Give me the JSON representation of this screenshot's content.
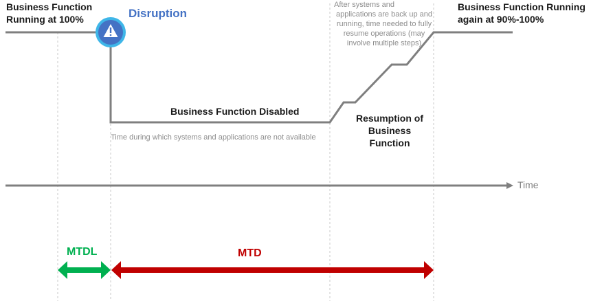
{
  "labels": {
    "start_line1": "Business Function",
    "start_line2": "Running at 100%",
    "disruption": "Disruption",
    "disabled": "Business Function Disabled",
    "unavailable_note": "Time during which systems and applications are not available",
    "resume_note_1": "After systems and",
    "resume_note_2": "applications are back up and",
    "resume_note_3": "running, time needed to fully",
    "resume_note_4": "resume operations (may",
    "resume_note_5": "involve multiple steps)",
    "resumption_line1": "Resumption of",
    "resumption_line2": "Business Function",
    "end_line1": "Business Function Running",
    "end_line2": "again at 90%-100%",
    "time": "Time",
    "mtdl": "MTDL",
    "mtd": "MTD"
  },
  "icons": {
    "disruption": "warning-triangle-icon",
    "time_arrow": "arrow-right-icon"
  },
  "colors": {
    "disruption_text": "#4472c4",
    "icon_fill": "#4472c4",
    "icon_ring": "#3fb6e8",
    "mtdl": "#00b050",
    "mtd": "#c00000",
    "line": "#7f7f7f",
    "guide": "#c8c8c8",
    "note_text": "#8c8c8c"
  }
}
